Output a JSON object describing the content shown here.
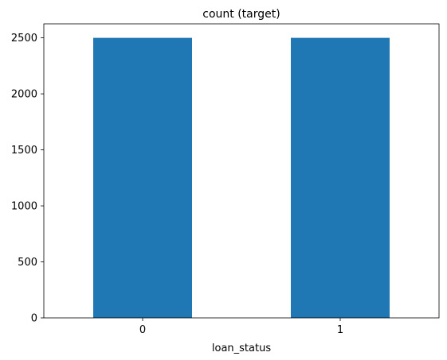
{
  "chart_data": {
    "type": "bar",
    "title": "count (target)",
    "xlabel": "loan_status",
    "ylabel": "",
    "categories": [
      "0",
      "1"
    ],
    "values": [
      2500,
      2500
    ],
    "ylim": [
      0,
      2625
    ],
    "yticks": [
      0,
      500,
      1000,
      1500,
      2000,
      2500
    ],
    "grid": false,
    "legend": "none",
    "bar_color": "#1f77b4"
  }
}
